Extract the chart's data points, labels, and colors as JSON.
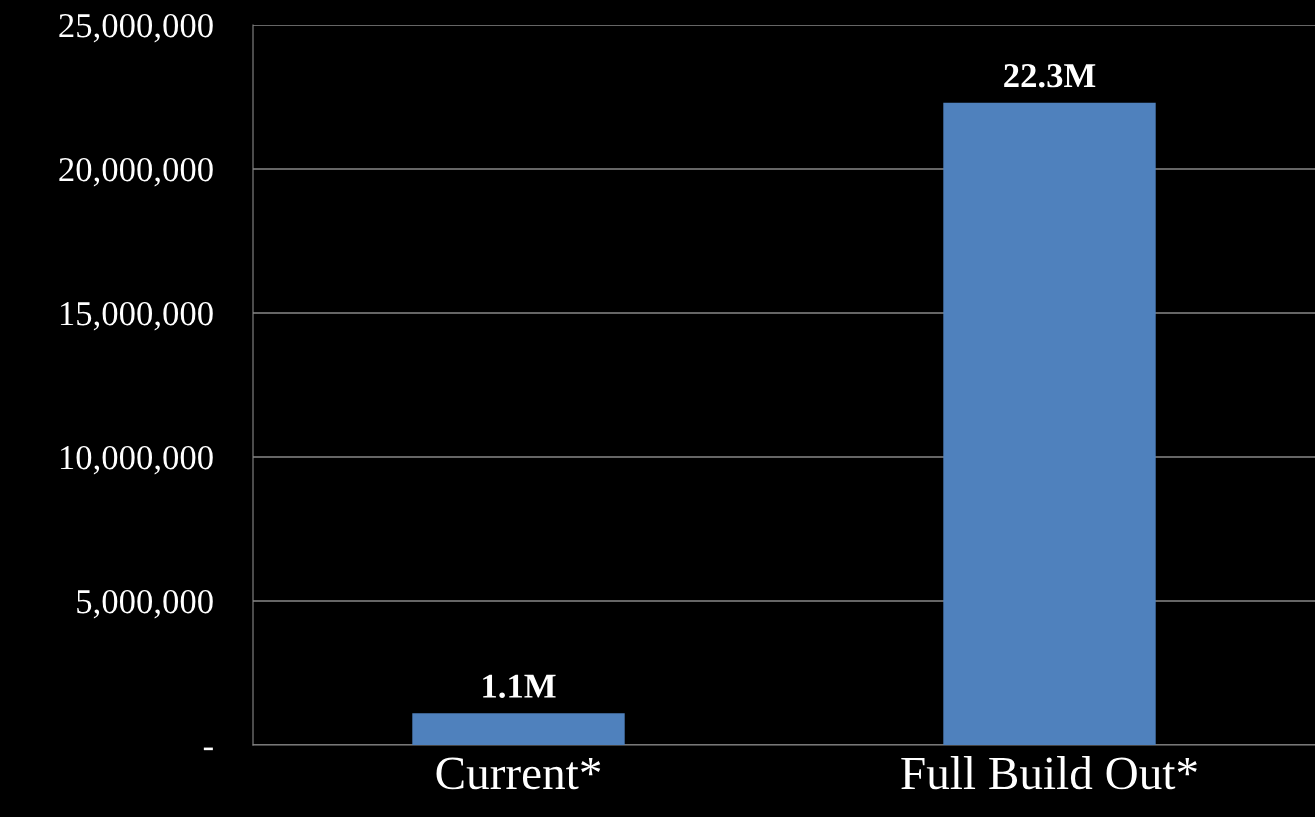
{
  "chart_data": {
    "type": "bar",
    "categories": [
      "Current*",
      "Full Build Out*"
    ],
    "values": [
      1100000,
      22300000
    ],
    "value_labels": [
      "1.1M",
      "22.3M"
    ],
    "color": "#4f81bd",
    "ylim": [
      0,
      25000000
    ],
    "yticks": [
      {
        "value": 0,
        "label": "-"
      },
      {
        "value": 5000000,
        "label": "5,000,000"
      },
      {
        "value": 10000000,
        "label": "10,000,000"
      },
      {
        "value": 15000000,
        "label": "15,000,000"
      },
      {
        "value": 20000000,
        "label": "20,000,000"
      },
      {
        "value": 25000000,
        "label": "25,000,000"
      }
    ],
    "grid": "y",
    "legend": false
  }
}
